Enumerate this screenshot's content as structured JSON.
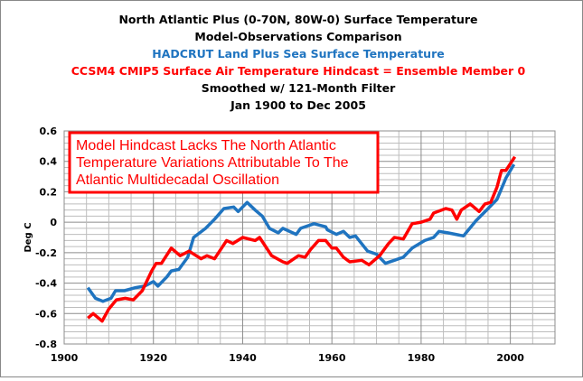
{
  "chart_data": {
    "type": "line",
    "title_lines": [
      {
        "text": "North Atlantic Plus (0-70N, 80W-0) Surface Temperature",
        "color": "#000000"
      },
      {
        "text": "Model-Observations Comparison",
        "color": "#000000"
      },
      {
        "text": "HADCRUT Land Plus Sea Surface Temperature",
        "color": "#1f74c0"
      },
      {
        "text": "CCSM4 CMIP5 Surface Air Temperature Hindcast = Ensemble Member 0",
        "color": "#ff0000"
      },
      {
        "text": "Smoothed w/ 121-Month Filter",
        "color": "#000000"
      },
      {
        "text": "Jan 1900 to Dec 2005",
        "color": "#000000"
      }
    ],
    "annotation": [
      "Model Hindcast Lacks The North Atlantic",
      "Temperature Variations Attributable To The",
      "Atlantic Multidecadal Oscillation"
    ],
    "xlabel": "",
    "ylabel": "Deg C",
    "xlim": [
      1900,
      2010
    ],
    "ylim": [
      -0.8,
      0.6
    ],
    "xticks": [
      1900,
      1920,
      1940,
      1960,
      1980,
      2000
    ],
    "yticks": [
      -0.8,
      -0.6,
      -0.4,
      -0.2,
      0,
      0.2,
      0.4,
      0.6
    ],
    "ytick_labels": [
      "-0.8",
      "-0.6",
      "-0.4",
      "-0.2",
      "0",
      "0.2",
      "0.4",
      "0.6"
    ],
    "grid": true,
    "series": [
      {
        "color": "#1f74c0",
        "x": [
          1905.3,
          1907,
          1908.7,
          1910.5,
          1911.5,
          1913.5,
          1916,
          1918,
          1920,
          1921,
          1923,
          1924,
          1925.7,
          1927.7,
          1929,
          1931.7,
          1933.7,
          1935.8,
          1938,
          1939,
          1941,
          1942.8,
          1944.4,
          1946,
          1948,
          1949,
          1952,
          1953,
          1956,
          1958.6,
          1959,
          1961,
          1962.6,
          1964,
          1965.3,
          1968,
          1970,
          1972,
          1974,
          1976,
          1978,
          1980.8,
          1982.8,
          1984,
          1986,
          1989.5,
          1992.3,
          1995,
          1997,
          1999,
          2000.8
        ],
        "y": [
          -0.43,
          -0.5,
          -0.52,
          -0.5,
          -0.45,
          -0.45,
          -0.43,
          -0.42,
          -0.39,
          -0.42,
          -0.36,
          -0.32,
          -0.31,
          -0.23,
          -0.1,
          -0.04,
          0.02,
          0.09,
          0.1,
          0.07,
          0.13,
          0.08,
          0.04,
          -0.04,
          -0.07,
          -0.04,
          -0.08,
          -0.04,
          -0.01,
          -0.03,
          -0.05,
          -0.08,
          -0.06,
          -0.1,
          -0.09,
          -0.19,
          -0.21,
          -0.27,
          -0.25,
          -0.23,
          -0.17,
          -0.12,
          -0.1,
          -0.06,
          -0.07,
          -0.09,
          0.01,
          0.09,
          0.15,
          0.29,
          0.38
        ]
      },
      {
        "color": "#ff0000",
        "x": [
          1905.3,
          1906.5,
          1908.5,
          1910,
          1911.7,
          1913.7,
          1915.5,
          1917.5,
          1919.6,
          1920.6,
          1921.8,
          1924,
          1926,
          1928,
          1930.7,
          1932,
          1933.7,
          1936.4,
          1937.8,
          1940,
          1942.8,
          1943.8,
          1946.5,
          1949,
          1950,
          1952.5,
          1954,
          1955.2,
          1957,
          1958.6,
          1960,
          1961,
          1962.6,
          1964,
          1966.7,
          1968.3,
          1970.7,
          1972.7,
          1974,
          1976,
          1978,
          1980,
          1982,
          1982.8,
          1985.5,
          1986.9,
          1988,
          1989,
          1991,
          1993,
          1994.3,
          1995.6,
          1997,
          1998,
          1999,
          2001
        ],
        "y": [
          -0.63,
          -0.6,
          -0.65,
          -0.57,
          -0.51,
          -0.5,
          -0.51,
          -0.45,
          -0.32,
          -0.27,
          -0.27,
          -0.17,
          -0.22,
          -0.19,
          -0.24,
          -0.22,
          -0.24,
          -0.12,
          -0.14,
          -0.1,
          -0.12,
          -0.1,
          -0.22,
          -0.26,
          -0.27,
          -0.22,
          -0.23,
          -0.18,
          -0.12,
          -0.12,
          -0.17,
          -0.17,
          -0.23,
          -0.26,
          -0.25,
          -0.28,
          -0.22,
          -0.14,
          -0.1,
          -0.11,
          -0.01,
          0.0,
          0.02,
          0.06,
          0.09,
          0.08,
          0.02,
          0.08,
          0.12,
          0.07,
          0.12,
          0.13,
          0.23,
          0.34,
          0.34,
          0.43
        ]
      }
    ]
  }
}
